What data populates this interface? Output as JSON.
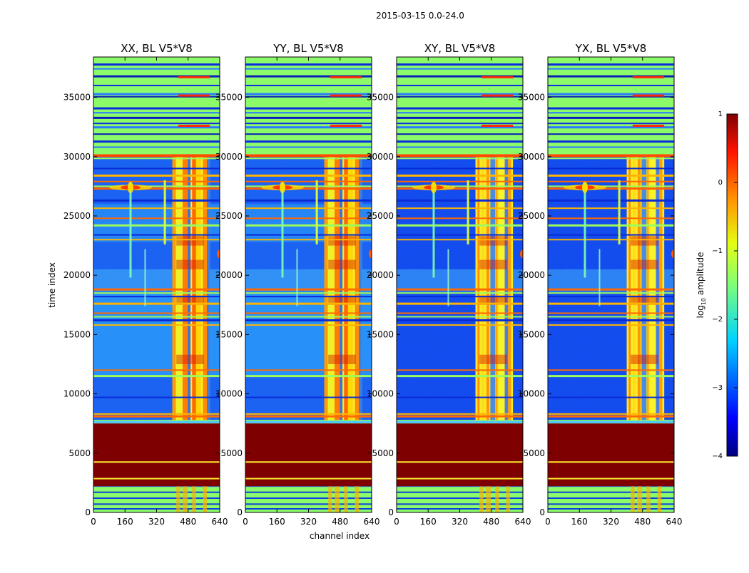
{
  "chart_data": {
    "type": "heatmap",
    "suptitle": "2015-03-15 0.0-24.0",
    "panels": [
      {
        "title": "XX, BL V5*V8"
      },
      {
        "title": "YY, BL V5*V8"
      },
      {
        "title": "XY, BL V5*V8"
      },
      {
        "title": "YX, BL V5*V8"
      }
    ],
    "xlabel": "channel index",
    "ylabel": "time index",
    "x_range": [
      0,
      640
    ],
    "y_range": [
      0,
      38400
    ],
    "xticks": [
      0,
      160,
      320,
      480,
      640
    ],
    "xtick_labels": [
      "0",
      "160",
      "320",
      "480",
      "640"
    ],
    "yticks": [
      0,
      5000,
      10000,
      15000,
      20000,
      25000,
      30000,
      35000
    ],
    "ytick_labels": [
      "0",
      "5000",
      "10000",
      "15000",
      "20000",
      "25000",
      "30000",
      "35000"
    ],
    "colorbar": {
      "label_prefix": "log",
      "label_sub": "10",
      "label_suffix": " amplitude",
      "range": [
        -4,
        1
      ],
      "ticks": [
        1,
        0,
        -1,
        -2,
        -3,
        -4
      ],
      "tick_labels": [
        "1",
        "0",
        "−1",
        "−2",
        "−3",
        "−4"
      ],
      "colormap": "jet"
    },
    "regions": {
      "flagged_saturated_time_range": [
        2200,
        7500
      ],
      "high_rfi_channel_range": [
        400,
        590
      ],
      "low_noise_time_range": [
        7800,
        30000
      ]
    }
  }
}
